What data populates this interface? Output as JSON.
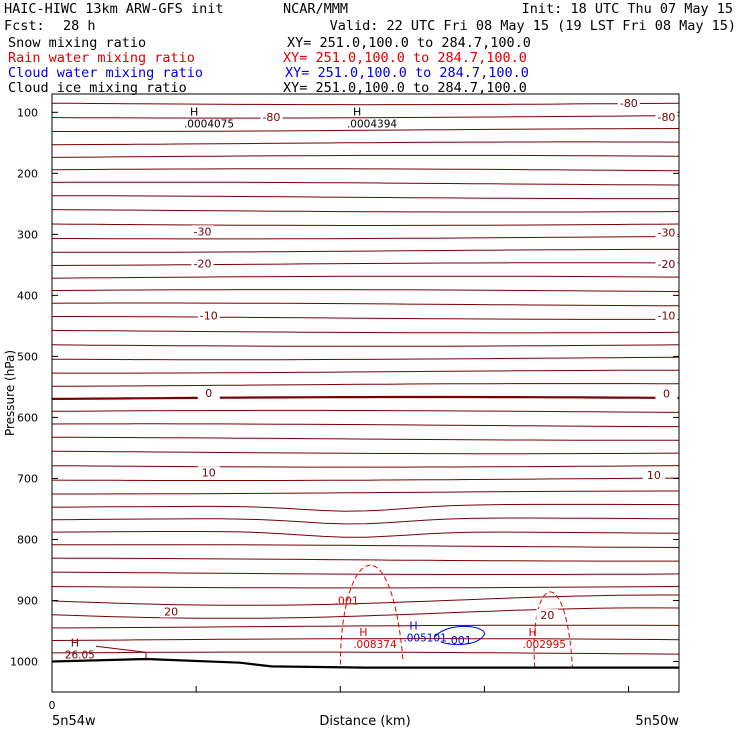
{
  "header": {
    "model": "HAIC-HIWC 13km ARW-GFS init",
    "org": "NCAR/MMM",
    "init": "Init: 18 UTC Thu 07 May 15",
    "fcst_label": "Fcst:",
    "fcst_value": "28 h",
    "valid": "Valid: 22 UTC Fri 08 May 15 (19 LST Fri 08 May 15)"
  },
  "fields": [
    {
      "name": "Snow mixing ratio",
      "xy": "XY= 251.0,100.0 to 284.7,100.0",
      "color": "#000000"
    },
    {
      "name": "Rain water mixing ratio",
      "xy": "XY= 251.0,100.0 to 284.7,100.0",
      "color": "#e00000"
    },
    {
      "name": "Cloud water mixing ratio",
      "xy": "XY= 251.0,100.0 to 284.7,100.0",
      "color": "#0000e0"
    },
    {
      "name": "Cloud ice mixing ratio",
      "xy": "XY= 251.0,100.0 to 284.7,100.0",
      "color": "#000000"
    }
  ],
  "chart_data": {
    "type": "line",
    "xlabel": "Distance (km)",
    "ylabel": "Pressure (hPa)",
    "x_start_label": "5n54w",
    "x_end_label": "5n50w",
    "x_zero_label": "0",
    "ylim": [
      1050,
      70
    ],
    "y_ticks": [
      100,
      200,
      300,
      400,
      500,
      600,
      700,
      800,
      900,
      1000
    ],
    "colors": {
      "temperature": "#7a0000",
      "rain": "#e00000",
      "cloud_water": "#0000e0",
      "ground": "#000000",
      "ice": "#000000"
    },
    "temperature_labels": [
      {
        "text": "-80",
        "x": 0.35,
        "p": 108
      },
      {
        "text": "-80",
        "x": 0.92,
        "p": 85
      },
      {
        "text": "-80",
        "x": 0.98,
        "p": 108
      },
      {
        "text": "-30",
        "x": 0.24,
        "p": 295
      },
      {
        "text": "-30",
        "x": 0.98,
        "p": 297
      },
      {
        "text": "-20",
        "x": 0.24,
        "p": 348
      },
      {
        "text": "-20",
        "x": 0.98,
        "p": 349
      },
      {
        "text": "-10",
        "x": 0.25,
        "p": 433
      },
      {
        "text": "-10",
        "x": 0.98,
        "p": 433
      },
      {
        "text": "0",
        "x": 0.25,
        "p": 560
      },
      {
        "text": "0",
        "x": 0.98,
        "p": 561
      },
      {
        "text": "10",
        "x": 0.25,
        "p": 690
      },
      {
        "text": "10",
        "x": 0.96,
        "p": 694
      },
      {
        "text": "20",
        "x": 0.19,
        "p": 918
      },
      {
        "text": "20",
        "x": 0.79,
        "p": 924
      }
    ],
    "extrema_labels": [
      {
        "mark": "H",
        "value": ".0004075",
        "x": 0.22,
        "p": 115,
        "field": "ice"
      },
      {
        "mark": "H",
        "value": ".0004394",
        "x": 0.48,
        "p": 115,
        "field": "ice"
      },
      {
        "mark": "H",
        "value": "26.05",
        "x": 0.03,
        "p": 985,
        "field": "temperature"
      },
      {
        "mark": "H",
        "value": ".008374",
        "x": 0.49,
        "p": 968,
        "field": "rain"
      },
      {
        "mark": "H",
        "value": ".002995",
        "x": 0.76,
        "p": 968,
        "field": "rain"
      },
      {
        "mark": "H",
        "value": ".005101",
        "x": 0.57,
        "p": 957,
        "field": "cloud_water"
      }
    ],
    "contour_labels": [
      {
        "text": ".001",
        "x": 0.47,
        "p": 900,
        "field": "rain"
      },
      {
        "text": ".001",
        "x": 0.65,
        "p": 965,
        "field": "cloud_water"
      }
    ]
  }
}
